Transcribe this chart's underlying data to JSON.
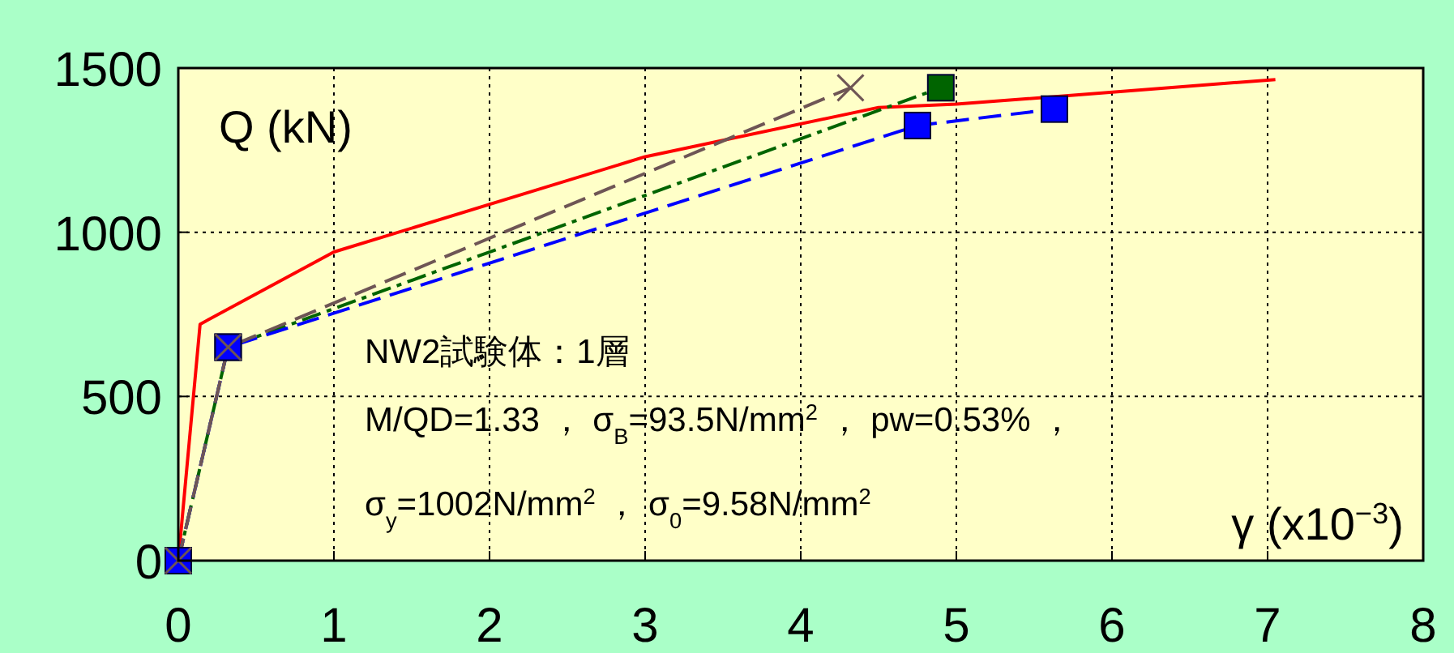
{
  "chart_data": {
    "type": "line",
    "xlabel": "γ (x10$^{−3}$)",
    "ylabel": "Q (kN)",
    "annotations": [
      "NW2試験体：1層",
      "M/QD=1.33 ， σ$_{B}$=93.5N/mm$^{2}$ ， pw=0.53% ，",
      "σ$_{y}$=1002N/mm$^{2}$ ， σ$_{0}$=9.58N/mm$^{2}$"
    ],
    "xlim": [
      0,
      8
    ],
    "xticks": [
      0,
      1,
      2,
      3,
      4,
      5,
      6,
      7,
      8
    ],
    "ylim": [
      0,
      1500
    ],
    "yticks": [
      0,
      500,
      1000,
      1500
    ],
    "grid": true,
    "series": [
      {
        "color": "#ff0000",
        "line_style": "solid",
        "marker": "none",
        "x": [
          0,
          0.14,
          1.0,
          3.0,
          4.5,
          5.0,
          7.05
        ],
        "values": [
          0,
          720,
          940,
          1230,
          1380,
          1390,
          1465
        ]
      },
      {
        "color": "#006400",
        "line_style": "dashdot",
        "marker": "square",
        "x": [
          0,
          0.32,
          4.9
        ],
        "values": [
          0,
          650,
          1440
        ]
      },
      {
        "color": "#0000ff",
        "line_style": "dashed",
        "marker": "square",
        "x": [
          0,
          0.32,
          4.75,
          5.63
        ],
        "values": [
          0,
          650,
          1325,
          1375
        ]
      },
      {
        "color": "#6e5555",
        "line_style": "dashed",
        "marker": "cross",
        "x": [
          0,
          0.32,
          4.32
        ],
        "values": [
          0,
          650,
          1440
        ]
      }
    ]
  }
}
